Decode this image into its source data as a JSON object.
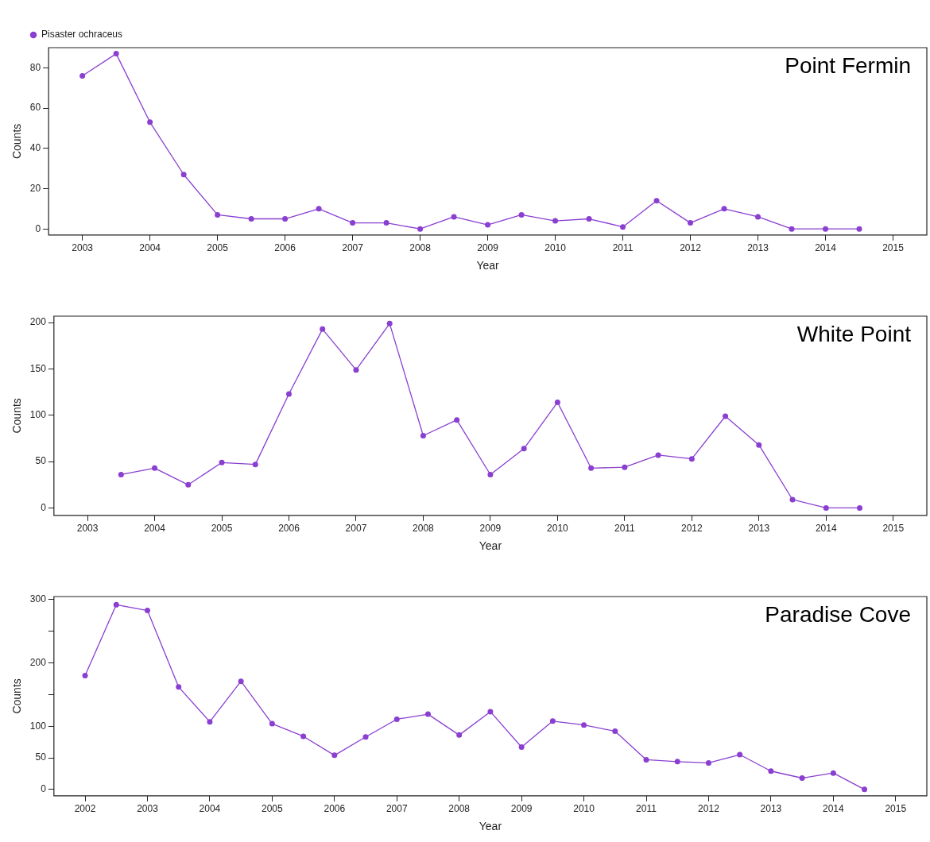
{
  "chart_data": [
    {
      "type": "line",
      "title": "Point Fermin",
      "xlabel": "Year",
      "ylabel": "Counts",
      "legend": "top left",
      "marker": "circle",
      "xlim": [
        2002.5,
        2015.5
      ],
      "ylim": [
        -3,
        90
      ],
      "xticks": [
        2003,
        2004,
        2005,
        2006,
        2007,
        2008,
        2009,
        2010,
        2011,
        2012,
        2013,
        2014,
        2015
      ],
      "yticks": [
        0,
        20,
        40,
        60,
        80
      ],
      "x": [
        2003,
        2003.5,
        2004,
        2004.5,
        2005,
        2005.5,
        2006,
        2006.5,
        2007,
        2007.5,
        2008,
        2008.5,
        2009,
        2009.5,
        2010,
        2010.5,
        2011,
        2011.5,
        2012,
        2012.5,
        2013,
        2013.5,
        2014,
        2014.5
      ],
      "series": [
        {
          "name": "Pisaster ochraceus",
          "color": "#8a3fd1",
          "values": [
            76,
            87,
            53,
            27,
            7,
            5,
            5,
            10,
            3,
            3,
            0,
            6,
            2,
            7,
            4,
            5,
            1,
            14,
            3,
            10,
            6,
            0,
            0,
            0
          ]
        }
      ]
    },
    {
      "type": "line",
      "title": "White Point",
      "xlabel": "Year",
      "ylabel": "Counts",
      "marker": "circle",
      "xlim": [
        2002.5,
        2015.5
      ],
      "ylim": [
        -8,
        207
      ],
      "xticks": [
        2003,
        2004,
        2005,
        2006,
        2007,
        2008,
        2009,
        2010,
        2011,
        2012,
        2013,
        2014,
        2015
      ],
      "yticks": [
        0,
        50,
        100,
        150,
        200
      ],
      "x": [
        2003.5,
        2004,
        2004.5,
        2005,
        2005.5,
        2006,
        2006.5,
        2007,
        2007.5,
        2008,
        2008.5,
        2009,
        2009.5,
        2010,
        2010.5,
        2011,
        2011.5,
        2012,
        2012.5,
        2013,
        2013.5,
        2014,
        2014.5
      ],
      "series": [
        {
          "color": "#8a3fd1",
          "values": [
            36,
            43,
            25,
            49,
            47,
            123,
            193,
            149,
            199,
            78,
            95,
            36,
            64,
            114,
            43,
            44,
            57,
            53,
            99,
            68,
            9,
            0,
            0
          ]
        }
      ]
    },
    {
      "type": "line",
      "title": "Paradise Cove",
      "xlabel": "Year",
      "ylabel": "Counts",
      "marker": "circle",
      "xlim": [
        2001.5,
        2015.5
      ],
      "ylim": [
        -10,
        305
      ],
      "xticks": [
        2002,
        2003,
        2004,
        2005,
        2006,
        2007,
        2008,
        2009,
        2010,
        2011,
        2012,
        2013,
        2014,
        2015
      ],
      "yticks": [
        0,
        50,
        100,
        {
          "value": 150,
          "label": null
        },
        200,
        {
          "value": 250,
          "label": null
        },
        300
      ],
      "x": [
        2002,
        2002.5,
        2003,
        2003.5,
        2004,
        2004.5,
        2005,
        2005.5,
        2006,
        2006.5,
        2007,
        2007.5,
        2008,
        2008.5,
        2009,
        2009.5,
        2010,
        2010.5,
        2011,
        2011.5,
        2012,
        2012.5,
        2013,
        2013.5,
        2014,
        2014.5
      ],
      "series": [
        {
          "color": "#8a3fd1",
          "values": [
            180,
            292,
            283,
            162,
            107,
            171,
            104,
            84,
            54,
            83,
            111,
            119,
            86,
            123,
            67,
            108,
            102,
            92,
            47,
            44,
            42,
            55,
            29,
            18,
            26,
            0
          ]
        }
      ]
    }
  ]
}
